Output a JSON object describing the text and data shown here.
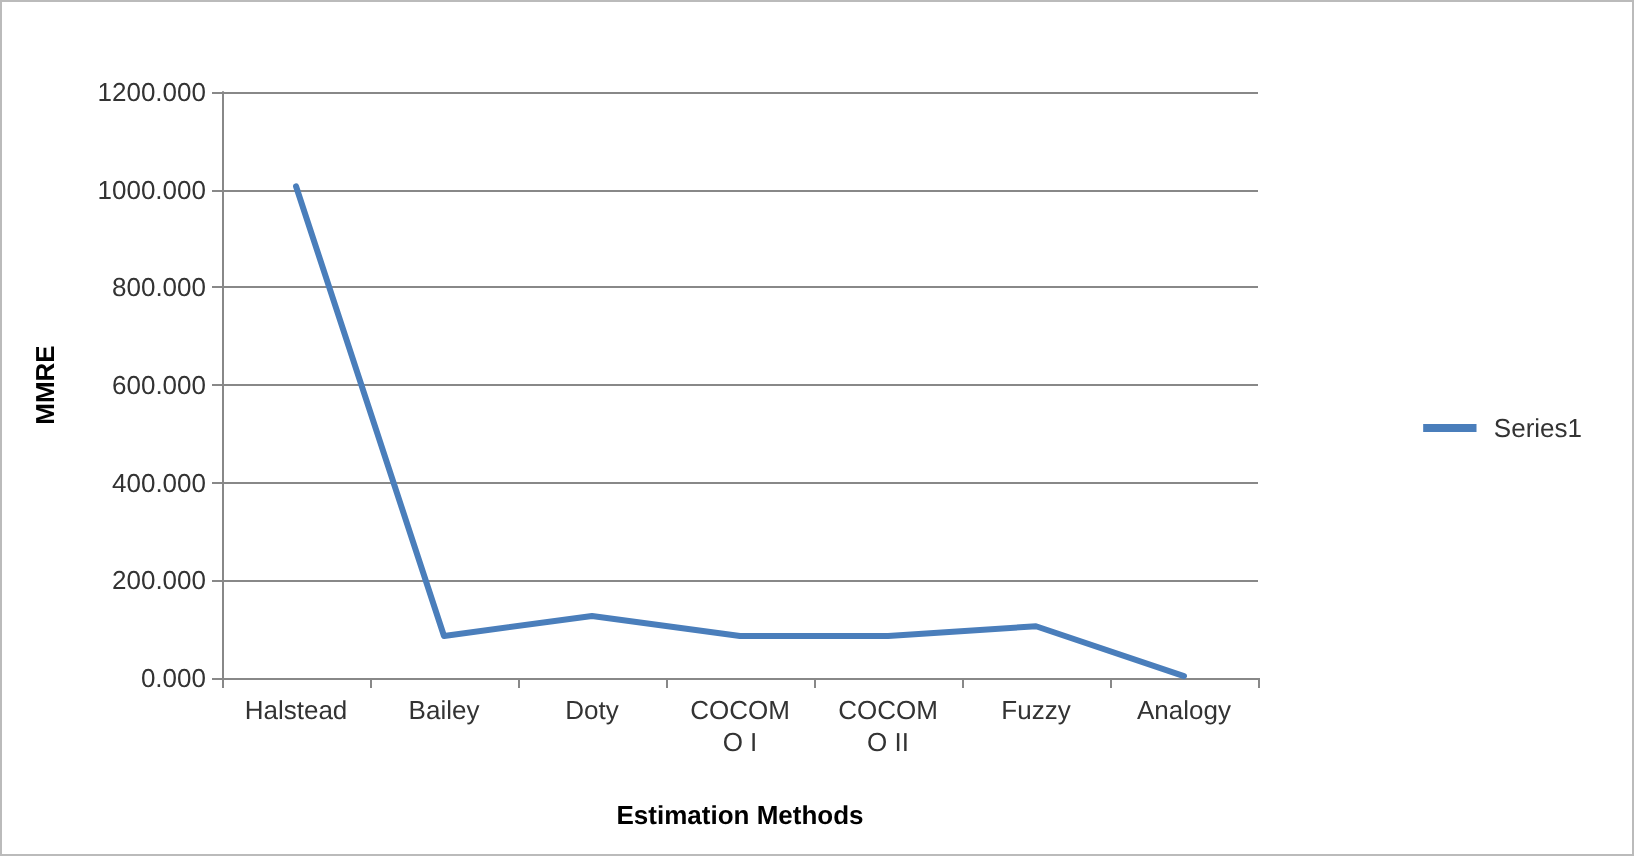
{
  "chart_data": {
    "type": "line",
    "xlabel": "Estimation Methods",
    "ylabel": "MMRE",
    "categories": [
      "Halstead",
      "Bailey",
      "Doty",
      "COCOMO I",
      "COCOMO II",
      "Fuzzy",
      "Analogy"
    ],
    "series": [
      {
        "name": "Series1",
        "color": "#4a7ebb",
        "values": [
          1007,
          86,
          127,
          86,
          86,
          106,
          4
        ]
      }
    ],
    "ylim": [
      0,
      1200
    ],
    "yticks": [
      {
        "value": 0,
        "label": "0.000"
      },
      {
        "value": 200,
        "label": "200.000"
      },
      {
        "value": 400,
        "label": "400.000"
      },
      {
        "value": 600,
        "label": "600.000"
      },
      {
        "value": 800,
        "label": "800.000"
      },
      {
        "value": 1000,
        "label": "1000.000"
      },
      {
        "value": 1200,
        "label": "1200.000"
      }
    ],
    "grid": "y",
    "legend": "right",
    "marker": "none",
    "line_style": "solid"
  }
}
